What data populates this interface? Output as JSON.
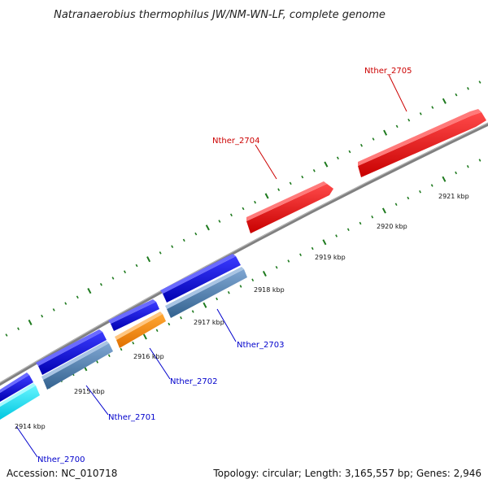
{
  "title": "Natranaerobius thermophilus JW/NM-WN-LF, complete genome",
  "footer": {
    "accession": "Accession: NC_010718",
    "summary": "Topology: circular; Length: 3,165,557 bp; Genes: 2,946"
  },
  "colors": {
    "forward_gene": "#ee0000",
    "forward_label": "#cc0000",
    "reverse_gene_blue": "#0000ee",
    "reverse_gene_steel": "#4a7fb5",
    "reverse_gene_orange": "#ff8800",
    "reverse_gene_cyan": "#00e5f5",
    "reverse_label": "#0000cc",
    "backbone": "#808080",
    "ticks": "#1e7a1e"
  },
  "kbp_labels": [
    "2914 kbp",
    "2915 kbp",
    "2916 kbp",
    "2917 kbp",
    "2918 kbp",
    "2919 kbp",
    "2920 kbp",
    "2921 kbp"
  ],
  "gene_labels": [
    {
      "id": "nther-2705",
      "text": "Nther_2705",
      "strand": "forward"
    },
    {
      "id": "nther-2704",
      "text": "Nther_2704",
      "strand": "forward"
    },
    {
      "id": "nther-2703",
      "text": "Nther_2703",
      "strand": "reverse"
    },
    {
      "id": "nther-2702",
      "text": "Nther_2702",
      "strand": "reverse"
    },
    {
      "id": "nther-2701",
      "text": "Nther_2701",
      "strand": "reverse"
    },
    {
      "id": "nther-2700",
      "text": "Nther_2700",
      "strand": "reverse"
    }
  ]
}
